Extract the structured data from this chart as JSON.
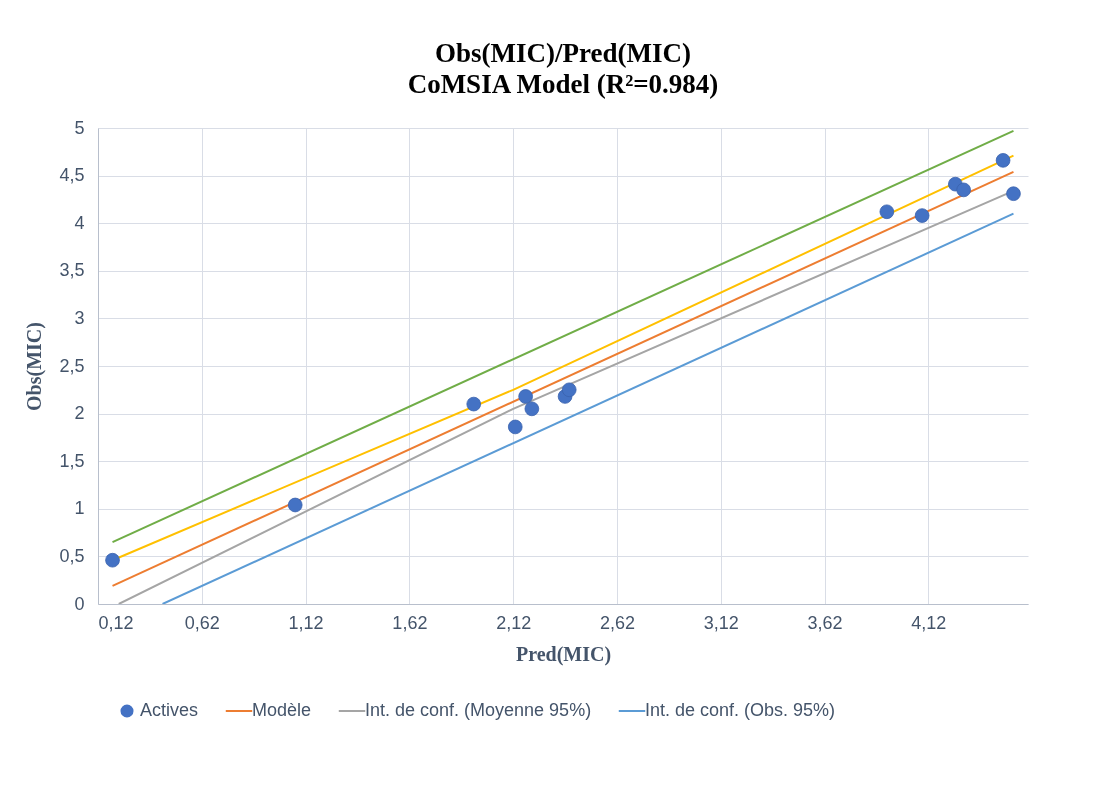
{
  "chart_data": {
    "type": "scatter",
    "title": "Obs(MIC)/Pred(MIC)",
    "subtitle": "CoMSIA Model (R²=0.984)",
    "xlabel": "Pred(MIC)",
    "ylabel": "Obs(MIC)",
    "xlim": [
      0.12,
      4.6
    ],
    "ylim": [
      0,
      5
    ],
    "xticks": [
      {
        "value": 0.12,
        "label": "0,12"
      },
      {
        "value": 0.62,
        "label": "0,62"
      },
      {
        "value": 1.12,
        "label": "1,12"
      },
      {
        "value": 1.62,
        "label": "1,62"
      },
      {
        "value": 2.12,
        "label": "2,12"
      },
      {
        "value": 2.62,
        "label": "2,62"
      },
      {
        "value": 3.12,
        "label": "3,12"
      },
      {
        "value": 3.62,
        "label": "3,62"
      },
      {
        "value": 4.12,
        "label": "4,12"
      }
    ],
    "yticks": [
      0,
      {
        "value": 0.5,
        "label": "0,5"
      },
      1,
      {
        "value": 1.5,
        "label": "1,5"
      },
      2,
      {
        "value": 2.5,
        "label": "2,5"
      },
      3,
      {
        "value": 3.5,
        "label": "3,5"
      },
      4,
      {
        "value": 4.5,
        "label": "4,5"
      },
      5
    ],
    "grid": true,
    "legend": "bottom",
    "series": [
      {
        "name": "Actives",
        "type": "scatter",
        "marker": "circle",
        "color": "#4472c4",
        "x": [
          0.19,
          1.07,
          1.93,
          2.18,
          2.21,
          2.13,
          2.37,
          2.39,
          3.92,
          4.09,
          4.25,
          4.29,
          4.48,
          4.53
        ],
        "values": [
          0.46,
          1.04,
          2.1,
          2.18,
          2.05,
          1.86,
          2.18,
          2.25,
          4.12,
          4.08,
          4.41,
          4.35,
          4.66,
          4.31
        ]
      },
      {
        "name": "Modèle",
        "type": "line",
        "color": "#ed7d31",
        "x": [
          0.19,
          4.53
        ],
        "values": [
          0.19,
          4.54
        ]
      },
      {
        "name": "Int. de conf. (Moyenne 95%)",
        "type": "line",
        "color": "#a5a5a5",
        "x": [
          0.22,
          2.12,
          4.53
        ],
        "values": [
          0,
          2.05,
          4.34
        ]
      },
      {
        "name": "Int. de conf. (Obs. 95%)",
        "type": "line",
        "color": "#5b9bd5",
        "x": [
          0.431,
          4.53
        ],
        "values": [
          0,
          4.1
        ]
      },
      {
        "type": "line",
        "color": "#ffc000",
        "x": [
          0.19,
          2.12,
          4.53
        ],
        "values": [
          0.46,
          2.25,
          4.71
        ]
      },
      {
        "type": "line",
        "color": "#70ad47",
        "x": [
          0.19,
          4.53
        ],
        "values": [
          0.65,
          4.97
        ]
      }
    ]
  }
}
